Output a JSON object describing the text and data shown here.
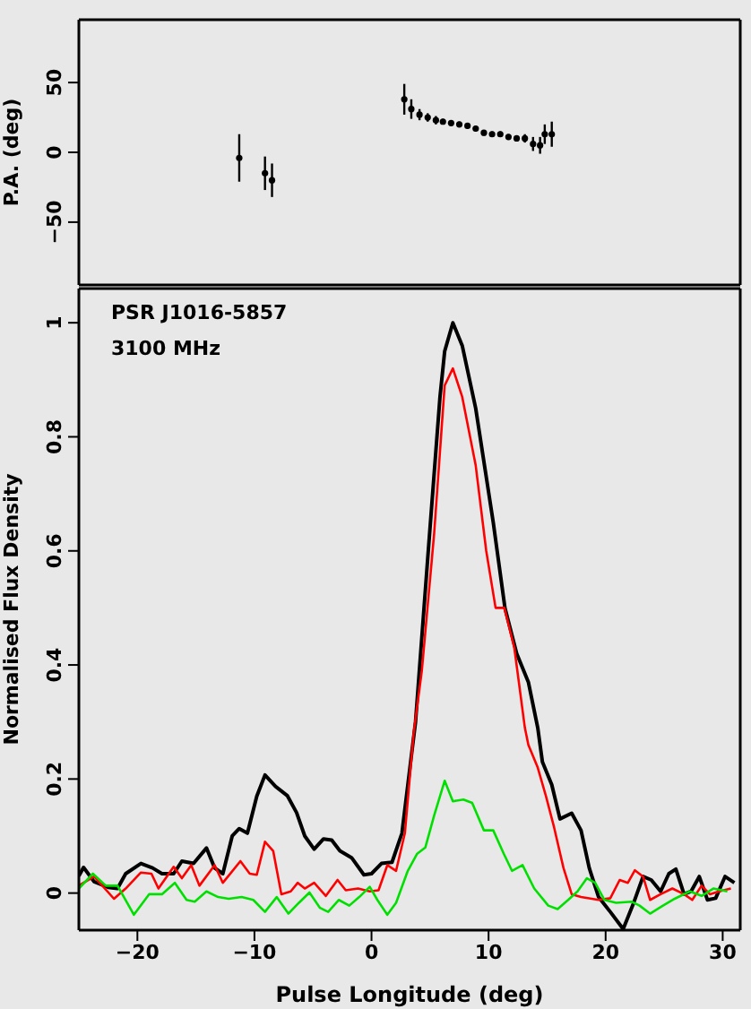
{
  "chart_data": [
    {
      "type": "scatter",
      "ylabel": "P.A. (deg)",
      "x": [
        -11.3,
        -9.1,
        -8.5,
        2.8,
        3.4,
        4.1,
        4.8,
        5.5,
        6.1,
        6.8,
        7.5,
        8.2,
        8.9,
        9.6,
        10.3,
        11.0,
        11.7,
        12.4,
        13.1,
        13.8,
        14.4,
        14.8,
        15.4
      ],
      "values": [
        -4,
        -15,
        -20,
        38,
        31,
        27,
        25,
        23,
        22,
        21,
        20,
        19,
        17,
        14,
        13,
        13,
        11,
        10,
        10,
        6,
        5,
        13,
        13
      ],
      "errors": [
        17,
        12,
        12,
        11,
        7,
        4,
        3,
        3,
        2,
        2,
        2,
        2,
        2,
        2,
        2,
        2,
        2,
        2,
        3,
        5,
        6,
        7,
        9
      ],
      "color": "#000000",
      "marker": "circle",
      "xlim": [
        -25,
        31.5
      ],
      "xticks": [
        -20,
        -10,
        0,
        10,
        20,
        30
      ],
      "ylim": [
        -95,
        95
      ],
      "yticks": [
        -50,
        0,
        50
      ],
      "tick_labels": "y",
      "grid": false
    },
    {
      "type": "line",
      "xlabel": "Pulse Longitude (deg)",
      "ylabel": "Normalised Flux Density",
      "annotations": [
        "PSR J1016-5857",
        "3100 MHz"
      ],
      "marker": "none",
      "grid": false,
      "xlim": [
        -25,
        31.5
      ],
      "xticks": [
        -20,
        -10,
        0,
        10,
        20,
        30
      ],
      "ylim": [
        -0.065,
        1.06
      ],
      "yticks": [
        0,
        0.2,
        0.4,
        0.6,
        0.8,
        1
      ],
      "series": [
        {
          "color": "#000000",
          "x": [
            -25,
            -24.6,
            -23.7,
            -22.5,
            -21.7,
            -21,
            -19.7,
            -18.7,
            -17.9,
            -16.9,
            -16.2,
            -15.2,
            -14.1,
            -13.4,
            -12.7,
            -11.9,
            -11.3,
            -10.6,
            -9.8,
            -9.1,
            -8.2,
            -7.2,
            -6.4,
            -5.7,
            -4.9,
            -4.1,
            -3.4,
            -2.7,
            -1.7,
            -0.65,
            0,
            0.85,
            1.75,
            2.6,
            3.4,
            3.76,
            4.85,
            5.85,
            6.25,
            6.95,
            7.75,
            8.9,
            10.4,
            11.4,
            12.4,
            13.4,
            14.2,
            14.6,
            15.4,
            16.1,
            17.1,
            17.9,
            18.6,
            19.4,
            20.4,
            21.5,
            22.4,
            23.2,
            23.9,
            24.7,
            25.4,
            26,
            26.7,
            27.3,
            28,
            28.7,
            29.4,
            30.2,
            31
          ],
          "values": [
            0.03,
            0.045,
            0.02,
            0.01,
            0.008,
            0.034,
            0.052,
            0.044,
            0.034,
            0.034,
            0.056,
            0.052,
            0.079,
            0.044,
            0.034,
            0.1,
            0.113,
            0.105,
            0.17,
            0.207,
            0.187,
            0.171,
            0.141,
            0.1,
            0.077,
            0.095,
            0.093,
            0.074,
            0.062,
            0.032,
            0.034,
            0.052,
            0.054,
            0.105,
            0.24,
            0.3,
            0.6,
            0.87,
            0.95,
            1.0,
            0.96,
            0.85,
            0.65,
            0.5,
            0.42,
            0.37,
            0.29,
            0.23,
            0.19,
            0.13,
            0.14,
            0.11,
            0.044,
            -0.007,
            -0.033,
            -0.063,
            -0.017,
            0.029,
            0.023,
            0.003,
            0.034,
            0.042,
            -0.002,
            0.003,
            0.029,
            -0.012,
            -0.009,
            0.029,
            0.018
          ]
        },
        {
          "color": "#ff0000",
          "x": [
            -25,
            -23.7,
            -22,
            -21,
            -19.7,
            -18.8,
            -18.2,
            -16.9,
            -16.2,
            -15.4,
            -14.7,
            -13.4,
            -12.7,
            -11.2,
            -10.4,
            -9.8,
            -9.1,
            -8.4,
            -7.7,
            -6.9,
            -6.3,
            -5.7,
            -4.9,
            -3.9,
            -2.9,
            -2.2,
            -1.15,
            -0.15,
            0.6,
            1.35,
            2.1,
            2.85,
            3.6,
            4.3,
            5.35,
            6.25,
            6.95,
            7.75,
            8.9,
            9.8,
            10.6,
            11.35,
            12.2,
            13.1,
            13.4,
            14.2,
            14.9,
            15.6,
            16.4,
            17.1,
            17.9,
            19.4,
            20.4,
            21.2,
            21.9,
            22.5,
            23.2,
            23.8,
            24.7,
            25.7,
            26.7,
            27.4,
            28.2,
            28.9,
            29.7,
            30.7
          ],
          "values": [
            0.013,
            0.029,
            -0.01,
            0.008,
            0.036,
            0.034,
            0.008,
            0.046,
            0.026,
            0.049,
            0.013,
            0.049,
            0.018,
            0.056,
            0.034,
            0.032,
            0.09,
            0.074,
            -0.002,
            0.003,
            0.018,
            0.008,
            0.018,
            -0.005,
            0.023,
            0.005,
            0.008,
            0.003,
            0.005,
            0.049,
            0.039,
            0.105,
            0.28,
            0.39,
            0.63,
            0.89,
            0.92,
            0.87,
            0.75,
            0.6,
            0.5,
            0.5,
            0.43,
            0.29,
            0.26,
            0.22,
            0.17,
            0.115,
            0.044,
            -0.002,
            -0.007,
            -0.012,
            -0.009,
            0.023,
            0.018,
            0.04,
            0.029,
            -0.012,
            -0.002,
            0.008,
            -0.002,
            -0.012,
            0.013,
            -0.002,
            0.003,
            0.008
          ]
        },
        {
          "color": "#00e000",
          "x": [
            -25,
            -23.8,
            -22.7,
            -21.7,
            -20.3,
            -19,
            -17.9,
            -16.8,
            -15.8,
            -15.1,
            -14.1,
            -13.1,
            -12.2,
            -11.1,
            -10.1,
            -9.1,
            -8.1,
            -7.1,
            -6.2,
            -5.3,
            -4.4,
            -3.7,
            -2.8,
            -1.9,
            -1.05,
            -0.15,
            0.5,
            1.35,
            2.1,
            3.1,
            3.9,
            4.6,
            5.35,
            6.25,
            6.95,
            7.85,
            8.6,
            9.6,
            10.4,
            11.3,
            12,
            12.9,
            13.9,
            15.1,
            15.9,
            16.8,
            17.6,
            18.4,
            19.1,
            19.9,
            20.9,
            22.2,
            22.9,
            23.8,
            24.9,
            25.9,
            27.2,
            28.2,
            29.2,
            30.4
          ],
          "values": [
            0.008,
            0.034,
            0.013,
            0.013,
            -0.038,
            -0.002,
            -0.002,
            0.018,
            -0.012,
            -0.015,
            0.003,
            -0.007,
            -0.01,
            -0.007,
            -0.012,
            -0.033,
            -0.007,
            -0.036,
            -0.017,
            0.001,
            -0.026,
            -0.033,
            -0.012,
            -0.022,
            -0.007,
            0.011,
            -0.012,
            -0.038,
            -0.017,
            0.039,
            0.069,
            0.08,
            0.136,
            0.197,
            0.161,
            0.164,
            0.158,
            0.11,
            0.11,
            0.069,
            0.039,
            0.049,
            0.008,
            -0.022,
            -0.028,
            -0.012,
            0.003,
            0.026,
            0.018,
            -0.012,
            -0.017,
            -0.015,
            -0.022,
            -0.036,
            -0.022,
            -0.01,
            0.003,
            -0.005,
            0.008,
            0.003
          ]
        }
      ]
    }
  ]
}
